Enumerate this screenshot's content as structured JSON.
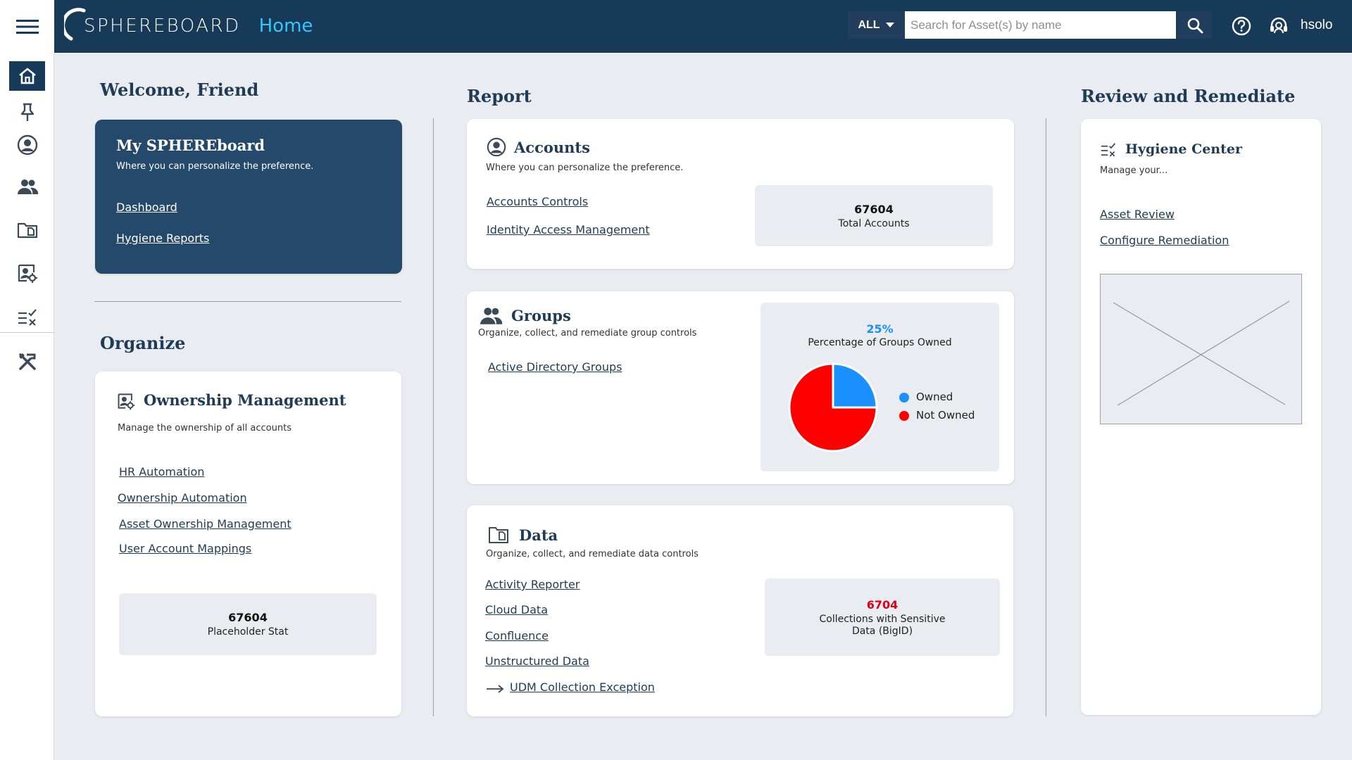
{
  "header": {
    "brand": "SPHEREBOARD",
    "page": "Home",
    "scope_label": "ALL",
    "search_placeholder": "Search for Asset(s) by name",
    "username": "hsolo"
  },
  "sidebar": {
    "items": [
      {
        "name": "home",
        "icon": "home-icon"
      },
      {
        "name": "pin",
        "icon": "pin-icon"
      },
      {
        "name": "account",
        "icon": "user-circle-icon"
      },
      {
        "name": "groups",
        "icon": "users-icon"
      },
      {
        "name": "data",
        "icon": "folder-icon"
      },
      {
        "name": "ownership",
        "icon": "user-settings-icon"
      },
      {
        "name": "hygiene",
        "icon": "checklist-icon"
      },
      {
        "name": "tools",
        "icon": "tools-icon"
      }
    ]
  },
  "welcome": {
    "title": "Welcome, Friend",
    "card": {
      "title": "My SPHEREboard",
      "desc": "Where you can personalize the preference.",
      "links": [
        "Dashboard",
        "Hygiene Reports"
      ]
    }
  },
  "organize": {
    "title": "Organize",
    "ownership": {
      "title": "Ownership Management",
      "desc": "Manage the ownership of all accounts",
      "links": [
        "HR Automation",
        "Ownership Automation",
        "Asset Ownership Management",
        "User Account Mappings"
      ],
      "stat_value": "67604",
      "stat_label": "Placeholder Stat"
    }
  },
  "report": {
    "title": "Report",
    "accounts": {
      "title": "Accounts",
      "desc": "Where you can personalize the preference.",
      "links": [
        "Accounts Controls",
        "Identity Access Management"
      ],
      "stat_value": "67604",
      "stat_label": "Total Accounts"
    },
    "groups": {
      "title": "Groups",
      "desc": "Organize, collect, and remediate group controls",
      "links": [
        "Active Directory Groups"
      ],
      "chart_title_value": "25%",
      "chart_title_label": "Percentage of Groups Owned"
    },
    "data": {
      "title": "Data",
      "desc": "Organize, collect, and remediate data controls",
      "links": [
        "Activity Reporter",
        "Cloud Data",
        "Confluence",
        "Unstructured Data",
        "UDM Collection Exception"
      ],
      "stat_value": "6704",
      "stat_label_1": "Collections with Sensitive",
      "stat_label_2": "Data (BigID)"
    }
  },
  "review": {
    "title": "Review and Remediate",
    "hygiene": {
      "title": "Hygiene Center",
      "desc": "Manage your...",
      "links": [
        "Asset Review",
        "Configure Remediation"
      ]
    }
  },
  "chart_data": {
    "type": "pie",
    "categories": [
      "Owned",
      "Not Owned"
    ],
    "values": [
      25,
      75
    ],
    "colors": [
      "#1a90ff",
      "#ff0000"
    ],
    "title": "25%",
    "subtitle": "Percentage of Groups Owned",
    "legend": "right"
  },
  "colors": {
    "header_bg": "#163a57",
    "accent": "#35c6ff",
    "dark_card": "#24496a",
    "stat_alert": "#e0001a"
  }
}
